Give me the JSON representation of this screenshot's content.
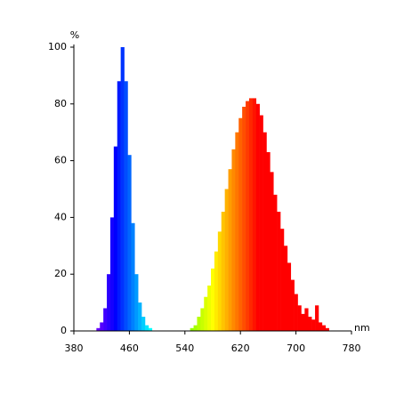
{
  "chart_data": {
    "type": "bar",
    "x_unit": "nm",
    "y_unit": "%",
    "x": [
      380,
      385,
      390,
      395,
      400,
      405,
      410,
      415,
      420,
      425,
      430,
      435,
      440,
      445,
      450,
      455,
      460,
      465,
      470,
      475,
      480,
      485,
      490,
      495,
      500,
      505,
      510,
      515,
      520,
      525,
      530,
      535,
      540,
      545,
      550,
      555,
      560,
      565,
      570,
      575,
      580,
      585,
      590,
      595,
      600,
      605,
      610,
      615,
      620,
      625,
      630,
      635,
      640,
      645,
      650,
      655,
      660,
      665,
      670,
      675,
      680,
      685,
      690,
      695,
      700,
      705,
      710,
      715,
      720,
      725,
      730,
      735,
      740,
      745,
      750,
      755,
      760,
      765,
      770,
      775,
      780
    ],
    "values": [
      0,
      0,
      0,
      0,
      0,
      0,
      0,
      1,
      3,
      8,
      20,
      40,
      65,
      88,
      100,
      88,
      62,
      38,
      20,
      10,
      5,
      2,
      1,
      0,
      0,
      0,
      0,
      0,
      0,
      0,
      0,
      0,
      0,
      0,
      1,
      2,
      5,
      8,
      12,
      16,
      22,
      28,
      35,
      42,
      50,
      57,
      64,
      70,
      75,
      79,
      81,
      82,
      82,
      80,
      76,
      70,
      63,
      56,
      48,
      42,
      36,
      30,
      24,
      18,
      13,
      9,
      6,
      8,
      5,
      4,
      9,
      3,
      2,
      1,
      0,
      0,
      0,
      0,
      0,
      0,
      0
    ],
    "xlim": [
      380,
      780
    ],
    "ylim": [
      0,
      100
    ],
    "xticks": [
      380,
      460,
      540,
      620,
      700,
      780
    ],
    "yticks": [
      0,
      20,
      40,
      60,
      80,
      100
    ],
    "color": "spectrum",
    "grid": false
  }
}
